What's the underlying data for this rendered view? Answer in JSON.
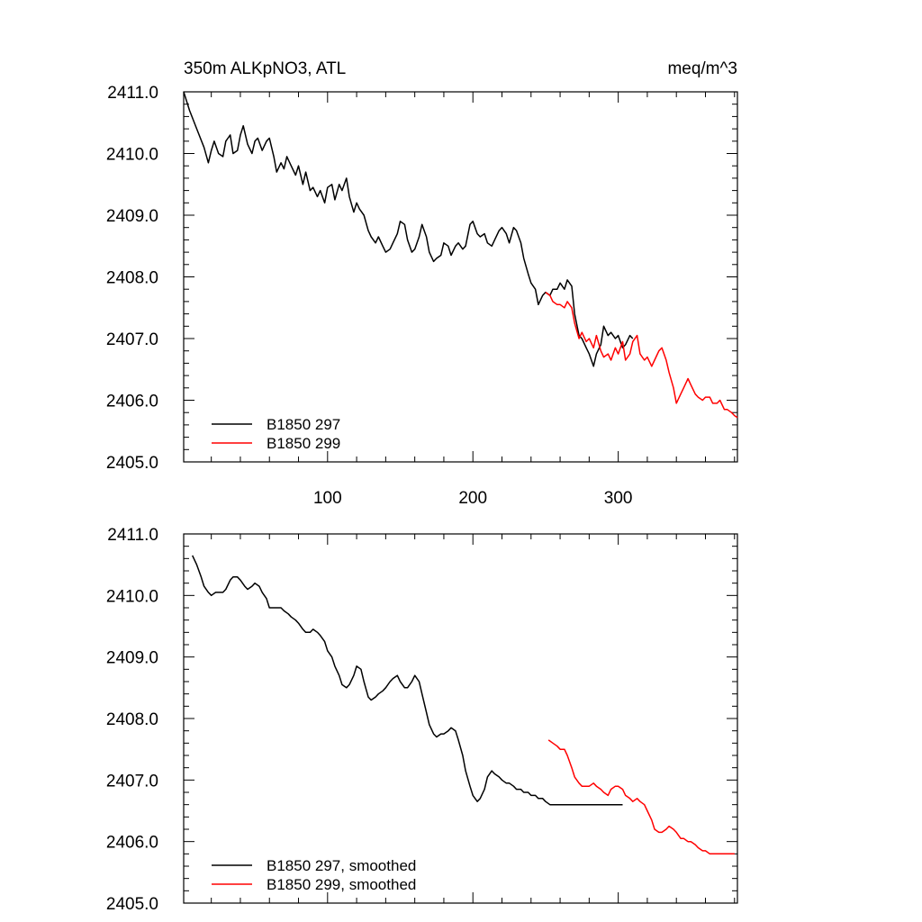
{
  "chart_data": [
    {
      "type": "line",
      "title": "350m ALKpNO3, ATL",
      "units": "meq/m^3",
      "xlabel": "",
      "ylabel": "",
      "xlim": [
        1,
        382
      ],
      "ylim": [
        2405.0,
        2411.0
      ],
      "y_tick_labels": [
        "2405.0",
        "2406.0",
        "2407.0",
        "2408.0",
        "2409.0",
        "2410.0",
        "2411.0"
      ],
      "x_tick_values": [
        100,
        200,
        300
      ],
      "x_tick_labels": [
        "100",
        "200",
        "300"
      ],
      "grid": false,
      "legend_position": "bottom-left",
      "series": [
        {
          "name": "B1850 297",
          "color": "#000000",
          "x": [
            1,
            5,
            10,
            15,
            18,
            20,
            22,
            25,
            28,
            30,
            33,
            35,
            38,
            40,
            42,
            45,
            48,
            50,
            52,
            55,
            58,
            60,
            63,
            65,
            68,
            70,
            72,
            75,
            78,
            80,
            83,
            85,
            88,
            90,
            93,
            95,
            98,
            100,
            103,
            105,
            108,
            110,
            113,
            115,
            118,
            120,
            122,
            125,
            128,
            130,
            133,
            135,
            138,
            140,
            143,
            145,
            148,
            150,
            153,
            155,
            158,
            160,
            163,
            165,
            168,
            170,
            173,
            175,
            178,
            180,
            183,
            185,
            188,
            190,
            193,
            195,
            198,
            200,
            203,
            205,
            208,
            210,
            213,
            215,
            218,
            220,
            223,
            225,
            228,
            230,
            233,
            235,
            238,
            240,
            243,
            245,
            248,
            250,
            253,
            255,
            258,
            260,
            263,
            265,
            268,
            270,
            273,
            275,
            278,
            280,
            283,
            285,
            288,
            290,
            293,
            295,
            298,
            300,
            303,
            305,
            308,
            310
          ],
          "y": [
            2411.0,
            2410.7,
            2410.4,
            2410.1,
            2409.85,
            2410.05,
            2410.2,
            2410.0,
            2409.95,
            2410.2,
            2410.3,
            2410.0,
            2410.05,
            2410.3,
            2410.45,
            2410.15,
            2410.0,
            2410.2,
            2410.25,
            2410.05,
            2410.2,
            2410.25,
            2409.95,
            2409.7,
            2409.85,
            2409.75,
            2409.95,
            2409.8,
            2409.65,
            2409.8,
            2409.5,
            2409.7,
            2409.4,
            2409.45,
            2409.3,
            2409.4,
            2409.2,
            2409.45,
            2409.5,
            2409.25,
            2409.5,
            2409.4,
            2409.6,
            2409.3,
            2409.05,
            2409.2,
            2409.1,
            2409.0,
            2408.75,
            2408.65,
            2408.55,
            2408.65,
            2408.5,
            2408.4,
            2408.45,
            2408.55,
            2408.7,
            2408.9,
            2408.85,
            2408.6,
            2408.4,
            2408.45,
            2408.65,
            2408.85,
            2408.65,
            2408.4,
            2408.25,
            2408.3,
            2408.35,
            2408.55,
            2408.5,
            2408.35,
            2408.5,
            2408.55,
            2408.45,
            2408.5,
            2408.85,
            2408.9,
            2408.7,
            2408.65,
            2408.7,
            2408.55,
            2408.5,
            2408.6,
            2408.75,
            2408.8,
            2408.7,
            2408.55,
            2408.8,
            2408.75,
            2408.55,
            2408.3,
            2408.05,
            2407.9,
            2407.8,
            2407.55,
            2407.7,
            2407.75,
            2407.7,
            2407.8,
            2407.8,
            2407.9,
            2407.8,
            2407.95,
            2407.85,
            2407.4,
            2407.05,
            2407.0,
            2406.85,
            2406.75,
            2406.55,
            2406.75,
            2406.9,
            2407.2,
            2407.05,
            2407.1,
            2407.0,
            2407.05,
            2406.85,
            2406.9,
            2407.05,
            2407.0
          ]
        },
        {
          "name": "B1850 299",
          "color": "#ff0000",
          "x": [
            250,
            253,
            255,
            258,
            260,
            263,
            265,
            268,
            270,
            273,
            275,
            278,
            280,
            283,
            285,
            288,
            290,
            293,
            295,
            298,
            300,
            303,
            305,
            308,
            310,
            313,
            315,
            318,
            320,
            323,
            325,
            328,
            330,
            333,
            335,
            338,
            340,
            343,
            345,
            348,
            350,
            353,
            355,
            358,
            360,
            363,
            365,
            368,
            370,
            373,
            375,
            378,
            380,
            382
          ],
          "y": [
            2407.75,
            2407.7,
            2407.6,
            2407.55,
            2407.55,
            2407.5,
            2407.6,
            2407.5,
            2407.25,
            2407.0,
            2407.1,
            2406.95,
            2407.0,
            2406.85,
            2407.05,
            2406.8,
            2406.7,
            2406.75,
            2406.65,
            2406.85,
            2406.75,
            2406.95,
            2406.65,
            2406.75,
            2406.95,
            2407.05,
            2406.75,
            2406.65,
            2406.7,
            2406.55,
            2406.65,
            2406.8,
            2406.85,
            2406.65,
            2406.45,
            2406.2,
            2405.95,
            2406.1,
            2406.2,
            2406.35,
            2406.25,
            2406.1,
            2406.05,
            2406.0,
            2406.05,
            2406.05,
            2405.95,
            2405.95,
            2406.0,
            2405.85,
            2405.85,
            2405.8,
            2405.75,
            2405.72
          ]
        }
      ]
    },
    {
      "type": "line",
      "title": "",
      "xlabel": "",
      "ylabel": "",
      "xlim": [
        1,
        382
      ],
      "ylim": [
        2405.0,
        2411.0
      ],
      "y_tick_labels": [
        "2405.0",
        "2406.0",
        "2407.0",
        "2408.0",
        "2409.0",
        "2410.0",
        "2411.0"
      ],
      "x_tick_values": [
        100,
        200,
        300
      ],
      "x_tick_labels": [
        "",
        "",
        ""
      ],
      "grid": false,
      "legend_position": "bottom-left",
      "series": [
        {
          "name": "B1850 297, smoothed",
          "color": "#000000",
          "x": [
            7,
            10,
            13,
            15,
            18,
            20,
            23,
            25,
            28,
            30,
            33,
            35,
            38,
            40,
            43,
            45,
            48,
            50,
            53,
            55,
            58,
            60,
            63,
            65,
            68,
            70,
            73,
            75,
            78,
            80,
            83,
            85,
            88,
            90,
            93,
            95,
            98,
            100,
            103,
            105,
            108,
            110,
            113,
            115,
            118,
            120,
            123,
            125,
            128,
            130,
            133,
            135,
            138,
            140,
            143,
            145,
            148,
            150,
            153,
            155,
            158,
            160,
            163,
            165,
            168,
            170,
            173,
            175,
            178,
            180,
            183,
            185,
            188,
            190,
            193,
            195,
            198,
            200,
            203,
            205,
            208,
            210,
            213,
            215,
            218,
            220,
            223,
            225,
            228,
            230,
            233,
            235,
            238,
            240,
            243,
            245,
            248,
            250,
            253,
            255,
            258,
            260,
            263,
            265,
            268,
            270,
            273,
            275,
            278,
            280,
            283,
            285,
            288,
            290,
            293,
            295,
            298,
            300,
            303
          ],
          "y": [
            2410.65,
            2410.5,
            2410.3,
            2410.15,
            2410.05,
            2410.0,
            2410.05,
            2410.05,
            2410.05,
            2410.1,
            2410.25,
            2410.3,
            2410.3,
            2410.25,
            2410.15,
            2410.1,
            2410.15,
            2410.2,
            2410.15,
            2410.05,
            2409.95,
            2409.8,
            2409.8,
            2409.8,
            2409.8,
            2409.75,
            2409.7,
            2409.65,
            2409.6,
            2409.55,
            2409.45,
            2409.4,
            2409.4,
            2409.45,
            2409.4,
            2409.35,
            2409.25,
            2409.1,
            2409.0,
            2408.85,
            2408.7,
            2408.55,
            2408.5,
            2408.55,
            2408.7,
            2408.85,
            2408.8,
            2408.6,
            2408.35,
            2408.3,
            2408.35,
            2408.4,
            2408.45,
            2408.5,
            2408.6,
            2408.65,
            2408.7,
            2408.6,
            2408.5,
            2408.5,
            2408.6,
            2408.7,
            2408.6,
            2408.4,
            2408.1,
            2407.9,
            2407.75,
            2407.7,
            2407.75,
            2407.75,
            2407.8,
            2407.85,
            2407.8,
            2407.65,
            2407.4,
            2407.15,
            2406.9,
            2406.75,
            2406.65,
            2406.7,
            2406.85,
            2407.05,
            2407.15,
            2407.1,
            2407.05,
            2407.0,
            2406.95,
            2406.95,
            2406.9,
            2406.85,
            2406.85,
            2406.8,
            2406.8,
            2406.75,
            2406.75,
            2406.7,
            2406.7,
            2406.65,
            2406.6,
            2406.6,
            2406.6,
            2406.6,
            2406.6,
            2406.6,
            2406.6,
            2406.6,
            2406.6,
            2406.6,
            2406.6,
            2406.6,
            2406.6,
            2406.6,
            2406.6,
            2406.6,
            2406.6,
            2406.6,
            2406.6,
            2406.6,
            2406.6
          ]
        },
        {
          "name": "B1850 299, smoothed",
          "color": "#ff0000",
          "x": [
            252,
            255,
            258,
            260,
            263,
            265,
            268,
            270,
            273,
            275,
            278,
            280,
            283,
            285,
            288,
            290,
            293,
            295,
            298,
            300,
            303,
            305,
            308,
            310,
            313,
            315,
            318,
            320,
            323,
            325,
            328,
            330,
            333,
            335,
            338,
            340,
            343,
            345,
            348,
            350,
            353,
            355,
            358,
            360,
            363,
            365,
            368,
            370,
            373,
            375,
            378,
            380
          ],
          "y": [
            2407.65,
            2407.6,
            2407.55,
            2407.5,
            2407.5,
            2407.4,
            2407.2,
            2407.05,
            2406.95,
            2406.9,
            2406.9,
            2406.9,
            2406.95,
            2406.9,
            2406.85,
            2406.8,
            2406.75,
            2406.85,
            2406.9,
            2406.9,
            2406.85,
            2406.75,
            2406.7,
            2406.65,
            2406.7,
            2406.65,
            2406.6,
            2406.5,
            2406.35,
            2406.2,
            2406.15,
            2406.15,
            2406.2,
            2406.25,
            2406.2,
            2406.15,
            2406.05,
            2406.05,
            2406.0,
            2406.0,
            2405.95,
            2405.9,
            2405.85,
            2405.85,
            2405.8,
            2405.8,
            2405.8,
            2405.8,
            2405.8,
            2405.8,
            2405.8,
            2405.8
          ]
        }
      ]
    }
  ]
}
